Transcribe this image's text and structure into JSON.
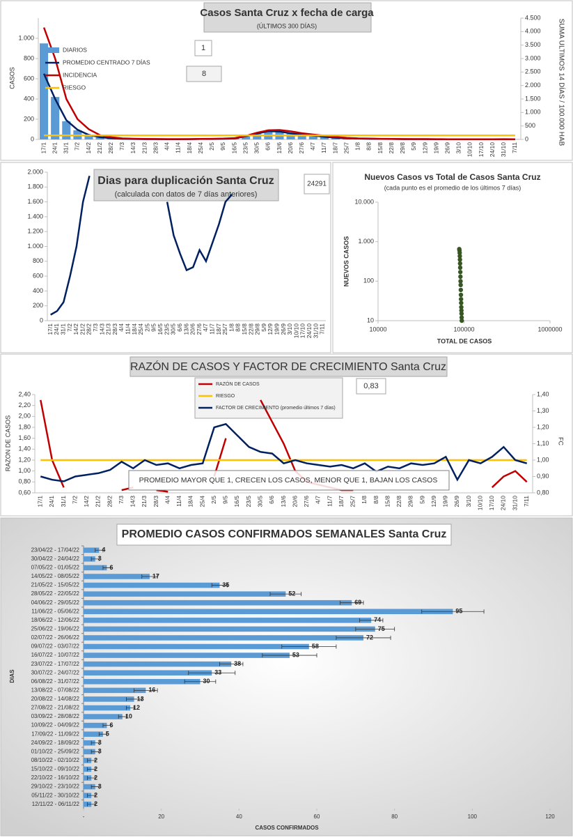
{
  "chart_data": [
    {
      "type": "bar",
      "title": "Casos  Santa  Cruz  x fecha  de carga",
      "subtitle": "(ÚLTIMOS 300 DÍAS)",
      "y_label": "CASOS",
      "y2_label": "SUMA  ULTIMOS 14 DÍAS / 100.000 HAB",
      "annotations": [
        "1",
        "8"
      ],
      "categories": [
        "17/1",
        "24/1",
        "31/1",
        "7/2",
        "14/2",
        "21/2",
        "28/2",
        "7/3",
        "14/3",
        "21/3",
        "28/3",
        "4/4",
        "11/4",
        "18/4",
        "25/4",
        "2/5",
        "9/5",
        "16/5",
        "23/5",
        "30/5",
        "6/6",
        "13/6",
        "20/6",
        "27/6",
        "4/7",
        "11/7",
        "18/7",
        "25/7",
        "1/8",
        "8/8",
        "15/8",
        "22/8",
        "29/8",
        "5/9",
        "12/9",
        "19/9",
        "26/9",
        "3/10",
        "10/10",
        "17/10",
        "24/10",
        "31/10",
        "7/11"
      ],
      "ylim": [
        0,
        1200
      ],
      "yticks": [
        0,
        200,
        400,
        600,
        800,
        {
          "value": 1000,
          "label": "1.000"
        }
      ],
      "y2lim": [
        0,
        4500
      ],
      "y2ticks": [
        0,
        500,
        {
          "value": 1000,
          "label": "1.000"
        },
        {
          "value": 1500,
          "label": "1.500"
        },
        {
          "value": 2000,
          "label": "2.000"
        },
        {
          "value": 2500,
          "label": "2.500"
        },
        {
          "value": 3000,
          "label": "3.000"
        },
        {
          "value": 3500,
          "label": "3.500"
        },
        {
          "value": 4000,
          "label": "4.000"
        },
        {
          "value": 4500,
          "label": "4.500"
        }
      ],
      "series": [
        {
          "name": "DIARIOS",
          "mark": "bar",
          "color": "#5b9bd5",
          "values": [
            950,
            420,
            180,
            90,
            40,
            20,
            10,
            6,
            4,
            3,
            3,
            2,
            2,
            3,
            5,
            4,
            6,
            10,
            30,
            55,
            85,
            80,
            60,
            45,
            40,
            28,
            18,
            12,
            8,
            6,
            5,
            4,
            3,
            3,
            3,
            2,
            2,
            2,
            2,
            2,
            2,
            3,
            2
          ]
        },
        {
          "name": "PROMEDIO CENTRADO 7 DÍAS",
          "mark": "line",
          "color": "#002060",
          "values": [
            650,
            400,
            190,
            95,
            45,
            22,
            12,
            6,
            4,
            3,
            3,
            2,
            2,
            3,
            4,
            4,
            6,
            10,
            32,
            58,
            82,
            78,
            60,
            46,
            38,
            26,
            17,
            11,
            8,
            6,
            5,
            4,
            3,
            3,
            3,
            2,
            2,
            2,
            2,
            2,
            2,
            3,
            2
          ]
        },
        {
          "name": "INCIDENCIA",
          "mark": "line",
          "axis": "y2",
          "color": "#c00000",
          "values": [
            4150,
            3000,
            1500,
            750,
            380,
            160,
            80,
            40,
            25,
            18,
            15,
            12,
            12,
            14,
            18,
            22,
            30,
            50,
            130,
            250,
            340,
            350,
            300,
            230,
            180,
            140,
            90,
            60,
            40,
            30,
            22,
            18,
            15,
            14,
            12,
            10,
            9,
            8,
            8,
            8,
            8,
            9,
            9
          ]
        },
        {
          "name": "RIESGO",
          "mark": "line",
          "axis": "y2",
          "color": "#ffc000",
          "values": [
            150,
            150,
            150,
            150,
            150,
            150,
            150,
            150,
            150,
            150,
            150,
            150,
            150,
            150,
            150,
            150,
            150,
            150,
            150,
            150,
            150,
            150,
            150,
            150,
            150,
            150,
            150,
            150,
            150,
            150,
            150,
            150,
            150,
            150,
            150,
            150,
            150,
            150,
            150,
            150,
            150,
            150,
            150
          ]
        }
      ]
    },
    {
      "type": "line",
      "title": "Dias para duplicación Santa Cruz",
      "subtitle": "(calculada con datos de 7 días anteriores)",
      "annotations": [
        "24291"
      ],
      "categories": [
        "17/1",
        "24/1",
        "31/1",
        "7/2",
        "14/2",
        "21/2",
        "28/2",
        "7/3",
        "14/3",
        "21/3",
        "28/3",
        "4/4",
        "11/4",
        "18/4",
        "25/4",
        "2/5",
        "9/5",
        "16/5",
        "23/5",
        "30/5",
        "6/6",
        "13/6",
        "20/6",
        "27/6",
        "4/7",
        "11/7",
        "18/7",
        "25/7",
        "1/8",
        "8/8",
        "15/8",
        "22/8",
        "29/8",
        "5/9",
        "12/9",
        "19/9",
        "26/9",
        "3/10",
        "10/10",
        "17/10",
        "24/10",
        "31/10",
        "7/11"
      ],
      "ylim": [
        0,
        2000
      ],
      "yticks": [
        0,
        200,
        400,
        600,
        800,
        {
          "value": 1000,
          "label": "1.000"
        },
        {
          "value": 1200,
          "label": "1.200"
        },
        {
          "value": 1400,
          "label": "1.400"
        },
        {
          "value": 1600,
          "label": "1.600"
        },
        {
          "value": 1800,
          "label": "1.800"
        },
        {
          "value": 2000,
          "label": "2.000"
        }
      ],
      "series": [
        {
          "color": "#002060",
          "values": [
            80,
            130,
            250,
            600,
            1000,
            1600,
            1950,
            null,
            null,
            null,
            null,
            null,
            null,
            null,
            null,
            null,
            null,
            null,
            1600,
            1150,
            900,
            680,
            720,
            950,
            800,
            1050,
            1300,
            1600,
            1700,
            null,
            null,
            null,
            null,
            null,
            null,
            null,
            null,
            null,
            null,
            null,
            null,
            null,
            null
          ]
        }
      ]
    },
    {
      "type": "scatter",
      "title": "Nuevos Casos vs Total de Casos Santa Cruz",
      "subtitle": "(cada punto es el promedio de los últimos 7 días)",
      "x_label": "TOTAL DE CASOS",
      "y_label": "NUEVOS  CASOS",
      "log_x": true,
      "log_y": true,
      "color": "#375623",
      "xlim": [
        10000,
        1000000
      ],
      "xticks": [
        10000,
        100000,
        1000000
      ],
      "ylim": [
        10,
        10000
      ],
      "yticks": [
        10,
        100,
        {
          "value": 1000,
          "label": "1.000"
        },
        {
          "value": 10000,
          "label": "10.000"
        }
      ],
      "x": [
        88000,
        88500,
        89000,
        89300,
        89600,
        89900,
        90200,
        90500,
        90800,
        91100,
        91400,
        91700,
        92000,
        92300,
        92600,
        92900,
        93200,
        93500,
        93800,
        94100
      ],
      "y": [
        650,
        600,
        520,
        430,
        350,
        280,
        220,
        170,
        130,
        100,
        80,
        60,
        45,
        35,
        28,
        22,
        18,
        15,
        12,
        10
      ]
    },
    {
      "type": "line",
      "title": "RAZÓN DE CASOS Y FACTOR DE CRECIMIENTO Santa Cruz",
      "y_label": "RAZON DE CASOS",
      "y2_label": "FC",
      "annotations": [
        "0,83",
        "PROMEDIO MAYOR QUE 1, CRECEN LOS CASOS, MENOR QUE 1, BAJAN LOS CASOS"
      ],
      "categories": [
        "17/1",
        "24/1",
        "31/1",
        "7/2",
        "14/2",
        "21/2",
        "28/2",
        "7/3",
        "14/3",
        "21/3",
        "28/3",
        "4/4",
        "11/4",
        "18/4",
        "25/4",
        "2/5",
        "9/5",
        "16/5",
        "23/5",
        "30/5",
        "6/6",
        "13/6",
        "20/6",
        "27/6",
        "4/7",
        "11/7",
        "18/7",
        "25/7",
        "1/8",
        "8/8",
        "15/8",
        "22/8",
        "29/8",
        "5/9",
        "12/9",
        "19/9",
        "26/9",
        "3/10",
        "10/10",
        "17/10",
        "24/10",
        "31/10",
        "7/11"
      ],
      "ylim": [
        0.6,
        2.4
      ],
      "yticks": [
        {
          "value": 0.6,
          "label": "0,60"
        },
        {
          "value": 0.8,
          "label": "0,80"
        },
        {
          "value": 1.0,
          "label": "1,00"
        },
        {
          "value": 1.2,
          "label": "1,20"
        },
        {
          "value": 1.4,
          "label": "1,40"
        },
        {
          "value": 1.6,
          "label": "1,60"
        },
        {
          "value": 1.8,
          "label": "1,80"
        },
        {
          "value": 2.0,
          "label": "2,00"
        },
        {
          "value": 2.2,
          "label": "2,20"
        },
        {
          "value": 2.4,
          "label": "2,40"
        }
      ],
      "y2lim": [
        0.8,
        1.4
      ],
      "y2ticks": [
        {
          "value": 0.8,
          "label": "0,80"
        },
        {
          "value": 0.9,
          "label": "0,90"
        },
        {
          "value": 1.0,
          "label": "1,00"
        },
        {
          "value": 1.1,
          "label": "1,10"
        },
        {
          "value": 1.2,
          "label": "1,20"
        },
        {
          "value": 1.3,
          "label": "1,30"
        },
        {
          "value": 1.4,
          "label": "1,40"
        }
      ],
      "series": [
        {
          "name": "RAZÓN DE CASOS",
          "color": "#c00000",
          "values": [
            2.3,
            1.2,
            0.7,
            null,
            null,
            null,
            null,
            0.65,
            0.7,
            null,
            0.65,
            0.62,
            null,
            null,
            null,
            0.9,
            1.6,
            null,
            null,
            2.3,
            1.9,
            1.5,
            1.0,
            0.8,
            0.75,
            0.7,
            0.65,
            0.65,
            null,
            null,
            null,
            null,
            null,
            null,
            null,
            null,
            null,
            null,
            null,
            0.7,
            0.9,
            1.0,
            0.8
          ]
        },
        {
          "name": "RIESGO",
          "axis": "y2",
          "color": "#ffc000",
          "values": [
            1,
            1,
            1,
            1,
            1,
            1,
            1,
            1,
            1,
            1,
            1,
            1,
            1,
            1,
            1,
            1,
            1,
            1,
            1,
            1,
            1,
            1,
            1,
            1,
            1,
            1,
            1,
            1,
            1,
            1,
            1,
            1,
            1,
            1,
            1,
            1,
            1,
            1,
            1,
            1,
            1,
            1,
            1
          ]
        },
        {
          "name": "FACTOR DE CRECIMIENTO (promedio últimos 7 días)",
          "axis": "y2",
          "color": "#002060",
          "values": [
            0.9,
            0.88,
            0.87,
            0.9,
            0.91,
            0.92,
            0.94,
            0.99,
            0.95,
            1.0,
            0.97,
            0.98,
            0.95,
            0.97,
            0.98,
            1.2,
            1.22,
            1.15,
            1.08,
            1.05,
            1.04,
            0.98,
            1.0,
            0.98,
            0.97,
            0.96,
            0.97,
            0.95,
            0.98,
            0.93,
            0.96,
            0.95,
            0.98,
            0.97,
            0.98,
            1.02,
            0.88,
            1.0,
            0.98,
            1.02,
            1.08,
            1.0,
            0.98
          ]
        }
      ]
    },
    {
      "type": "bar",
      "orientation": "horizontal",
      "title": "PROMEDIO CASOS CONFIRMADOS SEMANALES Santa Cruz",
      "x_label": "CASOS CONFIRMADOS",
      "y_label": "DIAS",
      "color": "#5b9bd5",
      "categories": [
        "23/04/22 - 17/04/22",
        "30/04/22 - 24/04/22",
        "07/05/22 - 01/05/22",
        "14/05/22 - 08/05/22",
        "21/05/22 - 15/05/22",
        "28/05/22 - 22/05/22",
        "04/06/22 - 29/05/22",
        "11/06/22 - 05/06/22",
        "18/06/22 - 12/06/22",
        "25/06/22 - 19/06/22",
        "02/07/22 - 26/06/22",
        "09/07/22 - 03/07/22",
        "16/07/22 - 10/07/22",
        "23/07/22 - 17/07/22",
        "30/07/22 - 24/07/22",
        "06/08/22 - 31/07/22",
        "13/08/22 - 07/08/22",
        "20/08/22 - 14/08/22",
        "27/08/22 - 21/08/22",
        "03/09/22 - 28/08/22",
        "10/09/22 - 04/09/22",
        "17/09/22 - 11/09/22",
        "24/09/22 - 18/09/22",
        "01/10/22 - 25/09/22",
        "08/10/22 - 02/10/22",
        "15/10/22 - 09/10/22",
        "22/10/22 - 16/10/22",
        "29/10/22 - 23/10/22",
        "05/11/22 - 30/10/22",
        "12/11/22 - 06/11/22"
      ],
      "values": [
        4,
        3,
        6,
        17,
        35,
        52,
        69,
        95,
        74,
        75,
        72,
        58,
        53,
        38,
        33,
        30,
        16,
        13,
        12,
        10,
        6,
        5,
        3,
        3,
        2,
        2,
        2,
        3,
        2,
        2
      ],
      "errors": [
        1,
        1,
        1,
        2,
        2,
        4,
        3,
        8,
        3,
        5,
        7,
        7,
        7,
        3,
        6,
        4,
        3,
        2,
        1,
        1,
        1,
        1,
        1,
        1,
        1,
        1,
        1,
        1,
        1,
        1
      ],
      "xlim": [
        0,
        120
      ],
      "xticks": [
        {
          "value": 0,
          "label": "-"
        },
        20,
        40,
        60,
        80,
        100,
        120
      ]
    }
  ]
}
